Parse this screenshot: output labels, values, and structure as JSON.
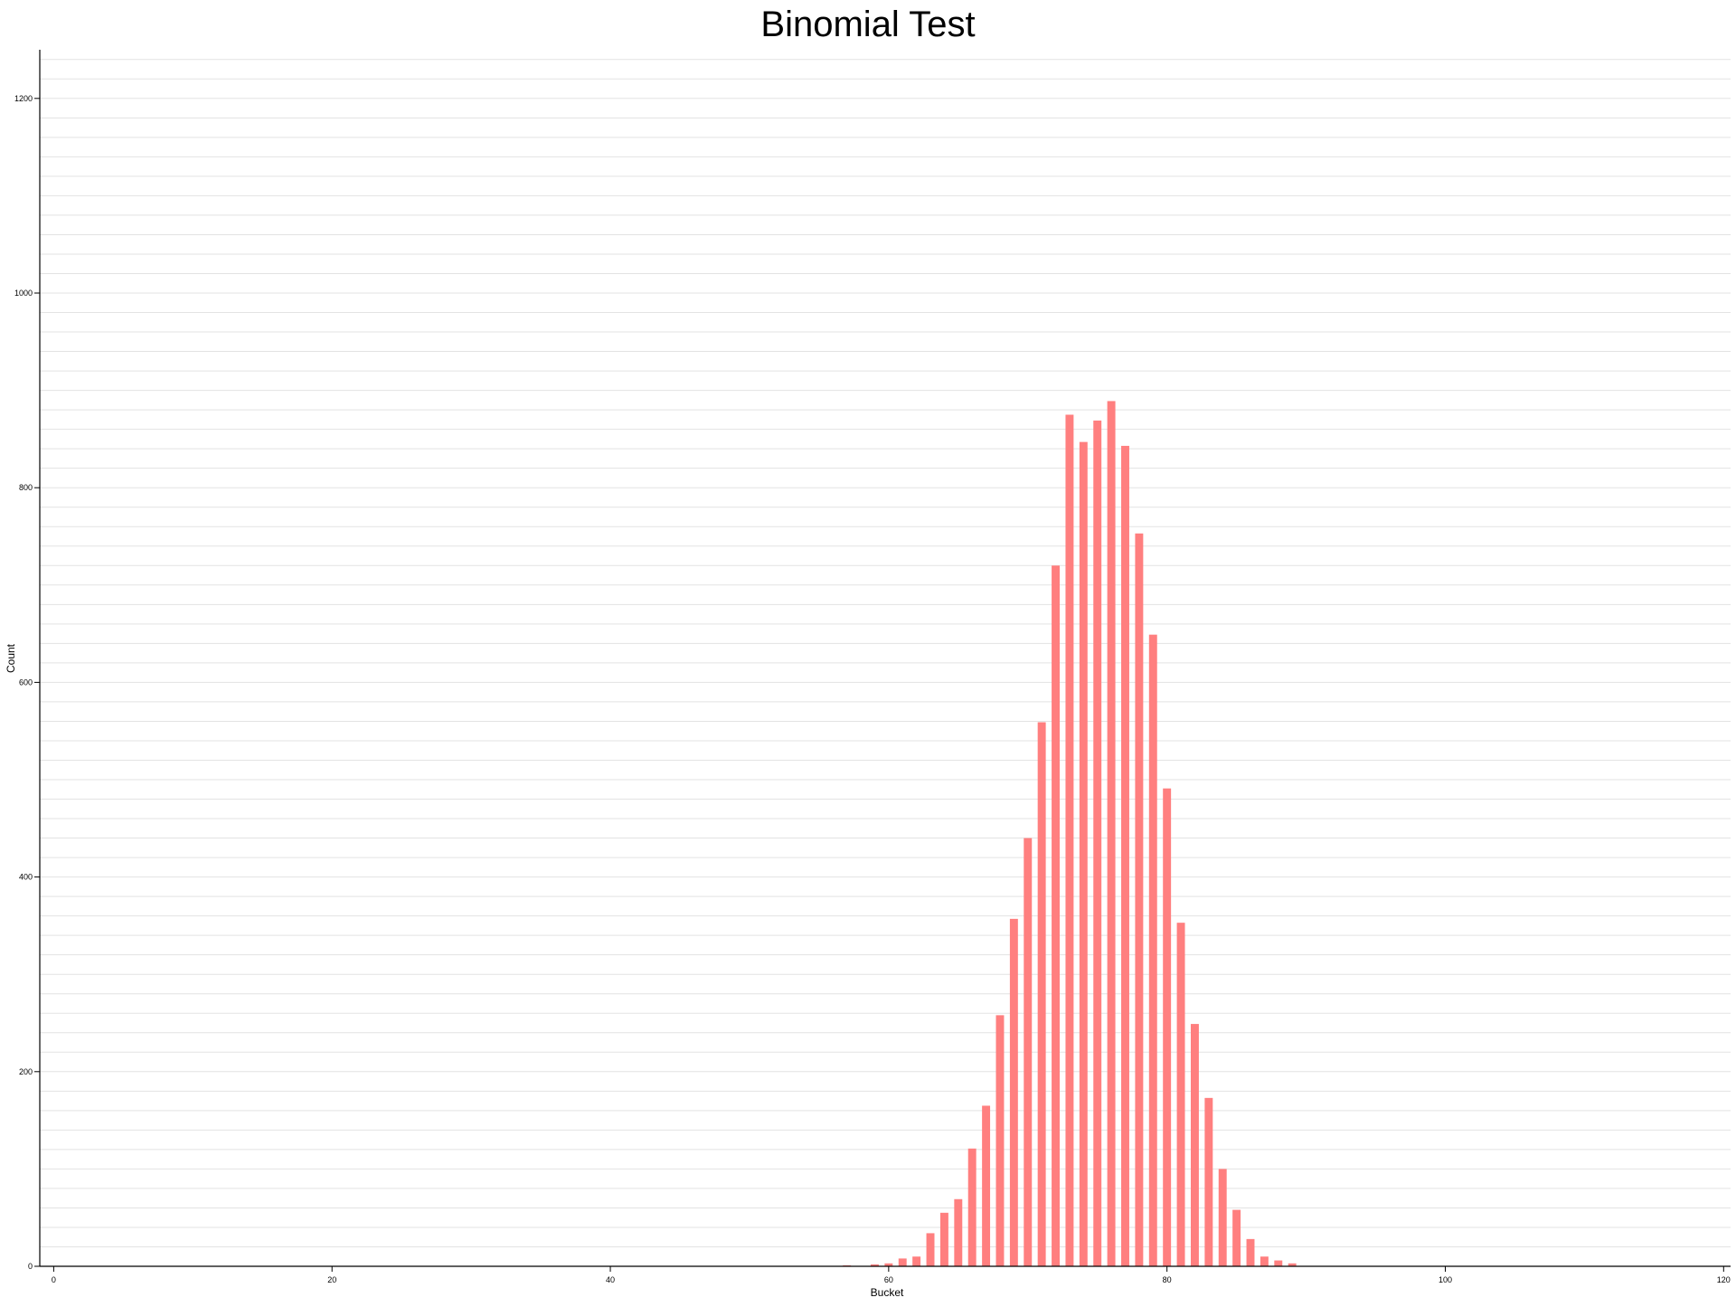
{
  "chart_data": {
    "type": "bar",
    "title": "Binomial Test",
    "xlabel": "Bucket",
    "ylabel": "Count",
    "xlim": [
      -1,
      120.5
    ],
    "ylim": [
      0,
      1250
    ],
    "x_ticks": [
      0,
      20,
      40,
      60,
      80,
      100,
      120
    ],
    "y_ticks": [
      0,
      200,
      400,
      600,
      800,
      1000,
      1200
    ],
    "y_minor_grid_step": 20,
    "grid": "horizontal",
    "bar_color": "#ff7f7f",
    "x": [
      57,
      58,
      59,
      60,
      61,
      62,
      63,
      64,
      65,
      66,
      67,
      68,
      69,
      70,
      71,
      72,
      73,
      74,
      75,
      76,
      77,
      78,
      79,
      80,
      81,
      82,
      83,
      84,
      85,
      86,
      87,
      88,
      89
    ],
    "values": [
      1,
      0,
      2,
      3,
      8,
      10,
      34,
      55,
      69,
      121,
      165,
      258,
      357,
      440,
      559,
      720,
      875,
      847,
      869,
      889,
      843,
      753,
      649,
      491,
      353,
      249,
      173,
      100,
      58,
      28,
      10,
      6,
      3
    ]
  }
}
